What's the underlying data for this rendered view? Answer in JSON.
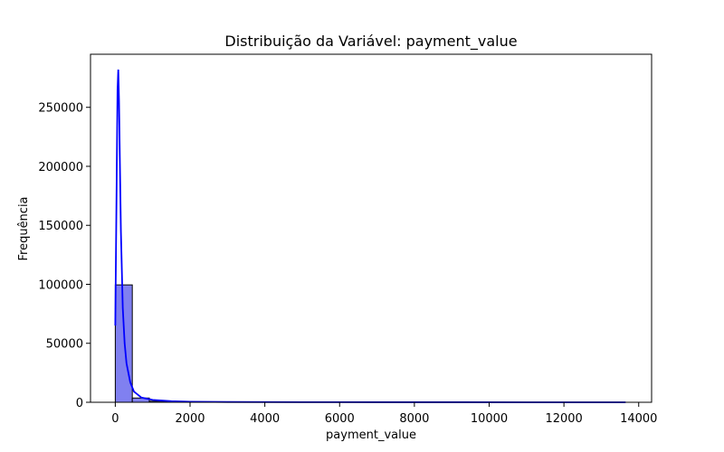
{
  "chart_data": {
    "type": "bar",
    "title": "Distribuição da Variável: payment_value",
    "xlabel": "payment_value",
    "ylabel": "Frequência",
    "xlim": [
      -663,
      14345
    ],
    "ylim": [
      0,
      295000
    ],
    "xticks": [
      0,
      2000,
      4000,
      6000,
      8000,
      10000,
      12000,
      14000
    ],
    "yticks": [
      0,
      50000,
      100000,
      150000,
      200000,
      250000
    ],
    "x_tick_labels": [
      "0",
      "2000",
      "4000",
      "6000",
      "8000",
      "10000",
      "12000",
      "14000"
    ],
    "y_tick_labels": [
      "0",
      "50000",
      "100000",
      "150000",
      "200000",
      "250000"
    ],
    "grid": false,
    "bar_color": "#8080f0",
    "edge_color": "#000000",
    "kde_color": "#0000ff",
    "bins": [
      {
        "start": 0,
        "end": 455,
        "count": 99500
      },
      {
        "start": 455,
        "end": 910,
        "count": 3600
      },
      {
        "start": 910,
        "end": 1365,
        "count": 900
      },
      {
        "start": 1365,
        "end": 1820,
        "count": 300
      },
      {
        "start": 1820,
        "end": 2275,
        "count": 140
      },
      {
        "start": 2275,
        "end": 2730,
        "count": 70
      },
      {
        "start": 2730,
        "end": 3185,
        "count": 40
      },
      {
        "start": 3185,
        "end": 3640,
        "count": 25
      },
      {
        "start": 3640,
        "end": 4095,
        "count": 15
      },
      {
        "start": 4095,
        "end": 4550,
        "count": 10
      },
      {
        "start": 4550,
        "end": 5005,
        "count": 8
      },
      {
        "start": 5005,
        "end": 5460,
        "count": 6
      },
      {
        "start": 5460,
        "end": 5915,
        "count": 5
      },
      {
        "start": 5915,
        "end": 6370,
        "count": 4
      },
      {
        "start": 6370,
        "end": 6825,
        "count": 3
      },
      {
        "start": 6825,
        "end": 7280,
        "count": 3
      },
      {
        "start": 7280,
        "end": 7735,
        "count": 2
      },
      {
        "start": 7735,
        "end": 8190,
        "count": 2
      },
      {
        "start": 8190,
        "end": 8645,
        "count": 2
      },
      {
        "start": 8645,
        "end": 9100,
        "count": 1
      },
      {
        "start": 9100,
        "end": 9555,
        "count": 1
      },
      {
        "start": 9555,
        "end": 10010,
        "count": 1
      },
      {
        "start": 10010,
        "end": 10465,
        "count": 1
      },
      {
        "start": 10465,
        "end": 10920,
        "count": 1
      },
      {
        "start": 10920,
        "end": 11375,
        "count": 1
      },
      {
        "start": 11375,
        "end": 11830,
        "count": 1
      },
      {
        "start": 11830,
        "end": 12285,
        "count": 1
      },
      {
        "start": 12285,
        "end": 12740,
        "count": 1
      },
      {
        "start": 12740,
        "end": 13195,
        "count": 1
      },
      {
        "start": 13195,
        "end": 13650,
        "count": 1
      }
    ],
    "kde": {
      "x": [
        0,
        30,
        60,
        80,
        100,
        120,
        150,
        200,
        250,
        300,
        400,
        500,
        700,
        1000,
        1500,
        2000,
        3000,
        5000,
        8000,
        11000,
        13650
      ],
      "y": [
        65000,
        165000,
        265000,
        282000,
        255000,
        210000,
        145000,
        80000,
        50000,
        33000,
        17000,
        9000,
        4000,
        2000,
        900,
        500,
        250,
        120,
        50,
        20,
        10
      ]
    }
  }
}
